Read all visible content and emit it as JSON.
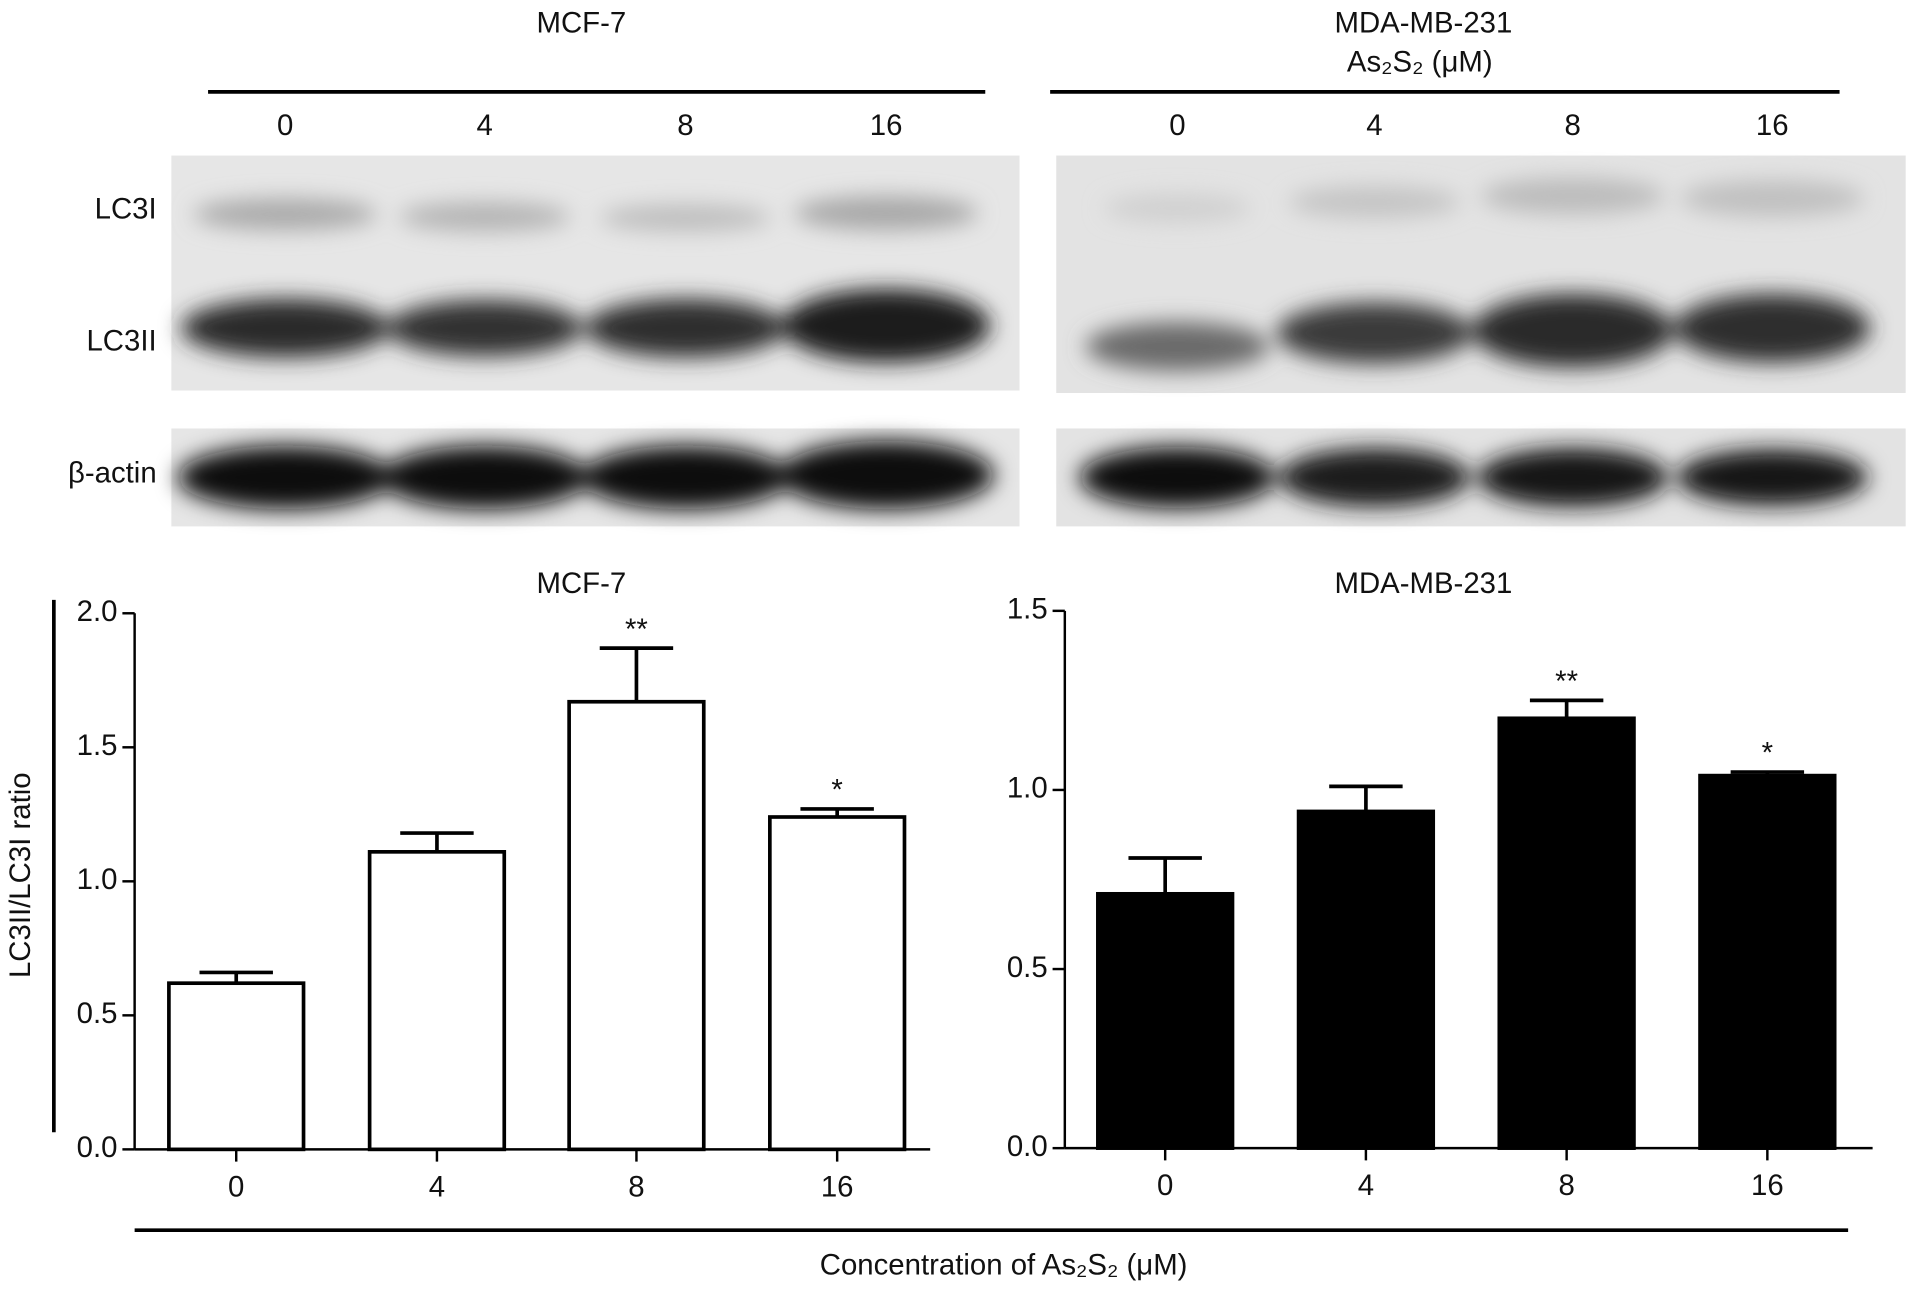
{
  "blot": {
    "panels": [
      {
        "title": "MCF-7",
        "lanes": [
          "0",
          "4",
          "8",
          "16"
        ]
      },
      {
        "title": "MDA-MB-231",
        "subtitle": "As₂S₂ (μM)",
        "lanes": [
          "0",
          "4",
          "8",
          "16"
        ]
      }
    ],
    "rows": [
      "LC3I",
      "LC3II",
      "β-actin"
    ]
  },
  "xlabel": "Concentration of As₂S₂ (μM)",
  "chart_data": [
    {
      "type": "bar",
      "title": "MCF-7",
      "ylabel": "LC3II/LC3I ratio",
      "categories": [
        "0",
        "4",
        "8",
        "16"
      ],
      "values": [
        0.62,
        1.11,
        1.67,
        1.24
      ],
      "errors": [
        0.04,
        0.07,
        0.2,
        0.03
      ],
      "annotations": [
        null,
        null,
        "**",
        "*"
      ],
      "color": "#ffffff",
      "edgecolor": "#000000",
      "ylim": [
        0,
        2.0
      ],
      "yticks": [
        {
          "value": 0,
          "label": "0.0"
        },
        0.5,
        {
          "value": 1,
          "label": "1.0"
        },
        1.5,
        {
          "value": 2,
          "label": "2.0"
        }
      ]
    },
    {
      "type": "bar",
      "title": "MDA-MB-231",
      "categories": [
        "0",
        "4",
        "8",
        "16"
      ],
      "values": [
        0.71,
        0.94,
        1.2,
        1.04
      ],
      "errors": [
        0.1,
        0.07,
        0.05,
        0.01
      ],
      "annotations": [
        null,
        null,
        "**",
        "*"
      ],
      "color": "#000000",
      "edgecolor": "#000000",
      "ylim": [
        0,
        1.5
      ],
      "yticks": [
        {
          "value": 0,
          "label": "0.0"
        },
        0.5,
        {
          "value": 1,
          "label": "1.0"
        },
        1.5
      ]
    }
  ]
}
